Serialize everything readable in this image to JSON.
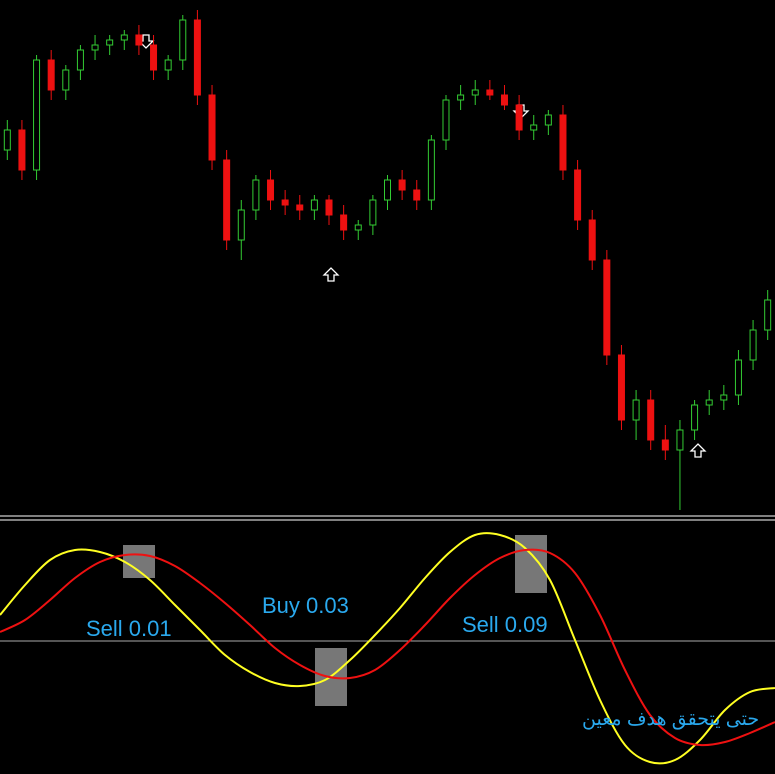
{
  "chart_data": [
    {
      "type": "candlestick",
      "ylim": [
        0,
        102
      ],
      "up_color": "#33cc33",
      "down_color": "#ee1111",
      "open": [
        72,
        76,
        68,
        90,
        84,
        88,
        92,
        93,
        94,
        95,
        93,
        88,
        90,
        98,
        83,
        70,
        54,
        60,
        66,
        62,
        61,
        60,
        62,
        59,
        56,
        57,
        62,
        66,
        64,
        62,
        74,
        82,
        83,
        84,
        83,
        81,
        76,
        77,
        79,
        68,
        58,
        50,
        31,
        18,
        22,
        14,
        12,
        16,
        21,
        22,
        23,
        30,
        36
      ],
      "high": [
        78,
        78,
        91,
        92,
        89,
        93,
        95,
        95,
        96,
        97,
        95,
        91,
        99,
        100,
        85,
        72,
        62,
        67,
        68,
        64,
        63,
        63,
        63,
        61,
        58,
        63,
        67,
        68,
        66,
        75,
        83,
        85,
        86,
        86,
        85,
        83,
        79,
        80,
        81,
        70,
        60,
        52,
        33,
        24,
        24,
        17,
        18,
        22,
        24,
        25,
        32,
        38,
        44
      ],
      "low": [
        70,
        66,
        66,
        82,
        82,
        86,
        90,
        91,
        92,
        91,
        86,
        86,
        88,
        81,
        68,
        52,
        50,
        58,
        60,
        59,
        58,
        58,
        57,
        54,
        54,
        55,
        60,
        62,
        60,
        60,
        72,
        80,
        81,
        82,
        80,
        74,
        74,
        75,
        66,
        56,
        48,
        29,
        16,
        14,
        12,
        10,
        0,
        14,
        19,
        20,
        21,
        28,
        34
      ],
      "close": [
        76,
        68,
        90,
        84,
        88,
        92,
        93,
        94,
        95,
        93,
        88,
        90,
        98,
        83,
        70,
        54,
        60,
        66,
        62,
        61,
        60,
        62,
        59,
        56,
        57,
        62,
        66,
        64,
        62,
        74,
        82,
        83,
        84,
        83,
        81,
        76,
        77,
        79,
        68,
        58,
        50,
        31,
        18,
        22,
        14,
        12,
        16,
        21,
        22,
        23,
        30,
        36,
        42
      ]
    },
    {
      "type": "line",
      "xlim": [
        0,
        775
      ],
      "ylim": [
        -132,
        122
      ],
      "x": [
        0,
        25,
        50,
        75,
        100,
        125,
        150,
        175,
        200,
        225,
        250,
        275,
        300,
        325,
        350,
        375,
        400,
        425,
        450,
        475,
        500,
        525,
        550,
        575,
        600,
        625,
        650,
        675,
        700,
        725,
        750,
        775
      ],
      "series": [
        {
          "color": "#ffff22",
          "values": [
            27,
            57,
            82,
            92,
            90,
            80,
            62,
            37,
            12,
            -13,
            -30,
            -41,
            -44,
            -38,
            -18,
            7,
            34,
            64,
            90,
            107,
            107,
            94,
            62,
            2,
            -58,
            -103,
            -120,
            -118,
            -98,
            -68,
            -50,
            -46
          ]
        },
        {
          "color": "#ee1111",
          "values": [
            10,
            22,
            42,
            64,
            80,
            87,
            86,
            76,
            59,
            39,
            17,
            -6,
            -23,
            -34,
            -36,
            -28,
            -8,
            17,
            44,
            67,
            84,
            92,
            89,
            69,
            27,
            -28,
            -73,
            -96,
            -103,
            -100,
            -91,
            -80
          ]
        }
      ],
      "annotations": [
        "Sell 0.01",
        "Buy 0.03",
        "Sell 0.09",
        "حتى يتحقق هدف معين"
      ]
    }
  ]
}
